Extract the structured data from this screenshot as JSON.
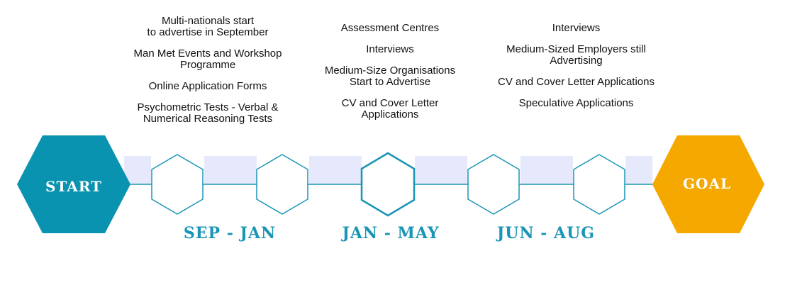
{
  "columns": [
    {
      "items": [
        [
          "Multi-nationals start",
          "to advertise in September"
        ],
        [
          "Man Met Events and Workshop",
          "Programme"
        ],
        [
          "Online Application Forms"
        ],
        [
          "Psychometric Tests - Verbal &",
          "Numerical Reasoning Tests"
        ]
      ]
    },
    {
      "items": [
        [
          "Assessment Centres"
        ],
        [
          "Interviews"
        ],
        [
          "Medium-Size Organisations",
          "Start to Advertise"
        ],
        [
          "CV and Cover Letter",
          "Applications"
        ]
      ]
    },
    {
      "items": [
        [
          "Interviews"
        ],
        [
          "Medium-Sized Employers still",
          "Advertising"
        ],
        [
          "CV and Cover Letter Applications"
        ],
        [
          "Speculative Applications"
        ]
      ]
    }
  ],
  "start_label": "START",
  "goal_label": "GOAL",
  "periods": [
    "SEP - JAN",
    "JAN - MAY",
    "JUN - AUG"
  ],
  "colors": {
    "teal": "#0a93b0",
    "gold": "#f5a800",
    "connector": "#e6e9fb",
    "line": "#1a95b5"
  }
}
